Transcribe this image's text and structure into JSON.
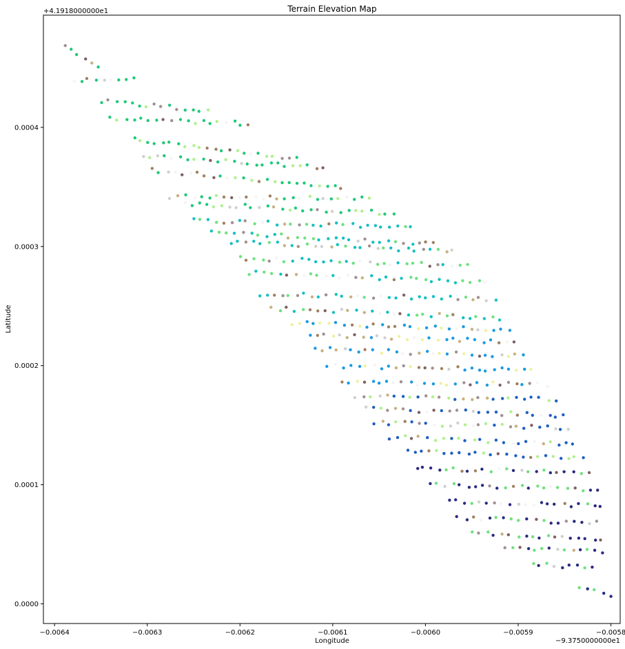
{
  "chart_data": {
    "type": "scatter",
    "title": "Terrain Elevation Map",
    "xlabel": "Longitude",
    "ylabel": "Latitude",
    "x_offset_label": "−9.3750000000e1",
    "y_offset_label": "+4.1918000000e1",
    "x_ticks": [
      -0.0064,
      -0.0063,
      -0.0062,
      -0.0061,
      -0.006,
      -0.0059,
      -0.0058
    ],
    "x_tick_labels": [
      "−0.0064",
      "−0.0063",
      "−0.0062",
      "−0.0061",
      "−0.0060",
      "−0.0059",
      "−0.0058"
    ],
    "y_ticks": [
      0.0,
      0.0001,
      0.0002,
      0.0003,
      0.0004
    ],
    "y_tick_labels": [
      "0.0000",
      "0.0001",
      "0.0002",
      "0.0003",
      "0.0004"
    ],
    "xlim": [
      -0.006412,
      -0.00579
    ],
    "ylim": [
      -1.65e-05,
      0.0004942
    ],
    "grid": false,
    "legend": "none",
    "colormap": [
      "#2a2a80",
      "#1f5fc0",
      "#1a9ae0",
      "#14c0c0",
      "#20c878",
      "#70e080",
      "#b0f090",
      "#f0f0a0",
      "#c8b080",
      "#a08060",
      "#806060",
      "#a09090",
      "#d0d0d0",
      "#f4f4f4"
    ],
    "bands": [
      {
        "x0": -0.00639,
        "y0": 0.000468,
        "x1": -0.006352,
        "y1": 0.00045
      },
      {
        "x0": -0.00638,
        "y0": 0.00044,
        "x1": -0.006315,
        "y1": 0.000442
      },
      {
        "x0": -0.00635,
        "y0": 0.000422,
        "x1": -0.006235,
        "y1": 0.000414
      },
      {
        "x0": -0.00634,
        "y0": 0.000408,
        "x1": -0.00619,
        "y1": 0.000403
      },
      {
        "x0": -0.006315,
        "y0": 0.00039,
        "x1": -0.00614,
        "y1": 0.000374
      },
      {
        "x0": -0.006305,
        "y0": 0.000376,
        "x1": -0.00611,
        "y1": 0.000366
      },
      {
        "x0": -0.006295,
        "y0": 0.000364,
        "x1": -0.00609,
        "y1": 0.00035
      },
      {
        "x0": -0.006275,
        "y0": 0.000342,
        "x1": -0.00606,
        "y1": 0.00034
      },
      {
        "x0": -0.00626,
        "y0": 0.000336,
        "x1": -0.006035,
        "y1": 0.000328
      },
      {
        "x0": -0.00625,
        "y0": 0.000322,
        "x1": -0.006015,
        "y1": 0.000316
      },
      {
        "x0": -0.00623,
        "y0": 0.000312,
        "x1": -0.00599,
        "y1": 0.000302
      },
      {
        "x0": -0.00621,
        "y0": 0.000304,
        "x1": -0.00597,
        "y1": 0.000296
      },
      {
        "x0": -0.0062,
        "y0": 0.00029,
        "x1": -0.005955,
        "y1": 0.000284
      },
      {
        "x0": -0.00619,
        "y0": 0.000278,
        "x1": -0.005935,
        "y1": 0.00027
      },
      {
        "x0": -0.00618,
        "y0": 0.00026,
        "x1": -0.005925,
        "y1": 0.000256
      },
      {
        "x0": -0.006165,
        "y0": 0.000248,
        "x1": -0.00592,
        "y1": 0.00024
      },
      {
        "x0": -0.006145,
        "y0": 0.000236,
        "x1": -0.00591,
        "y1": 0.00023
      },
      {
        "x0": -0.006125,
        "y0": 0.000226,
        "x1": -0.005905,
        "y1": 0.00022
      },
      {
        "x0": -0.00612,
        "y0": 0.000214,
        "x1": -0.005895,
        "y1": 0.000208
      },
      {
        "x0": -0.006105,
        "y0": 0.0002,
        "x1": -0.005885,
        "y1": 0.000196
      },
      {
        "x0": -0.00609,
        "y0": 0.000186,
        "x1": -0.00587,
        "y1": 0.000184
      },
      {
        "x0": -0.006075,
        "y0": 0.000174,
        "x1": -0.00586,
        "y1": 0.000172
      },
      {
        "x0": -0.006065,
        "y0": 0.000164,
        "x1": -0.00585,
        "y1": 0.000158
      },
      {
        "x0": -0.006055,
        "y0": 0.000152,
        "x1": -0.005845,
        "y1": 0.000148
      },
      {
        "x0": -0.00604,
        "y0": 0.00014,
        "x1": -0.00584,
        "y1": 0.000134
      },
      {
        "x0": -0.00602,
        "y0": 0.000128,
        "x1": -0.00583,
        "y1": 0.000122
      },
      {
        "x0": -0.00601,
        "y0": 0.000114,
        "x1": -0.005825,
        "y1": 0.00011
      },
      {
        "x0": -0.005995,
        "y0": 0.0001,
        "x1": -0.005815,
        "y1": 9.6e-05
      },
      {
        "x0": -0.005975,
        "y0": 8.6e-05,
        "x1": -0.00581,
        "y1": 8.2e-05
      },
      {
        "x0": -0.005965,
        "y0": 7.2e-05,
        "x1": -0.005815,
        "y1": 6.8e-05
      },
      {
        "x0": -0.00595,
        "y0": 6e-05,
        "x1": -0.00581,
        "y1": 5.4e-05
      },
      {
        "x0": -0.005915,
        "y0": 4.6e-05,
        "x1": -0.005808,
        "y1": 4.4e-05
      },
      {
        "x0": -0.005885,
        "y0": 3.4e-05,
        "x1": -0.00582,
        "y1": 3e-05
      },
      {
        "x0": -0.005835,
        "y0": 1.4e-05,
        "x1": -0.0058,
        "y1": 8e-06
      }
    ]
  }
}
